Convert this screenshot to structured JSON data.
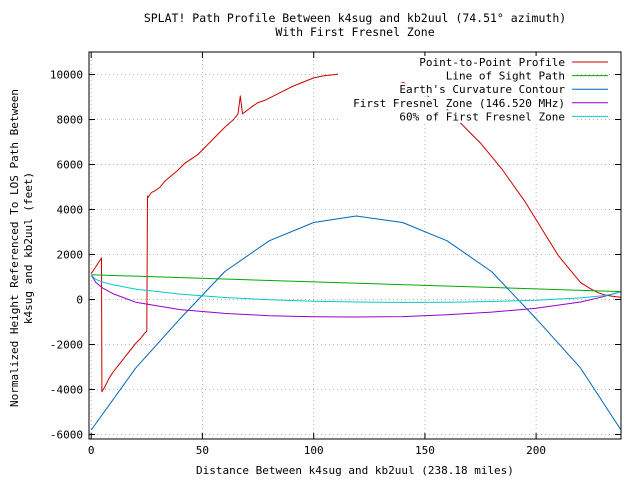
{
  "chart_data": {
    "type": "line",
    "title_line1": "SPLAT! Path Profile Between k4sug and kb2uul (74.51° azimuth)",
    "title_line2": "With First Fresnel Zone",
    "xlabel": "Distance Between k4sug and kb2uul (238.18 miles)",
    "ylabel_line1": "Normalized Height Referenced To LOS Path Between",
    "ylabel_line2": "k4sug and kb2uul (feet)",
    "xlim": [
      -1,
      238.18
    ],
    "ylim": [
      -6200,
      11000
    ],
    "x_ticks": [
      0,
      50,
      100,
      150,
      200
    ],
    "y_ticks": [
      -6000,
      -4000,
      -2000,
      0,
      2000,
      4000,
      6000,
      8000,
      10000
    ],
    "grid": true,
    "grid_style": "dotted",
    "legend_position": "top-right",
    "series": [
      {
        "name": "Point-to-Point Profile",
        "color": "#cc0000",
        "x": [
          0,
          2,
          4,
          4.6,
          4.8,
          6,
          8,
          10,
          12,
          14,
          16,
          18,
          20,
          22,
          24,
          25,
          25.3,
          25.6,
          27,
          29,
          31,
          33,
          36,
          39,
          42,
          45,
          48,
          52,
          56,
          60,
          64,
          66,
          67,
          68,
          70,
          72,
          75,
          78,
          82,
          86,
          90,
          95,
          100,
          105,
          110,
          115,
          120,
          125,
          130,
          135,
          140,
          145,
          150,
          155,
          160,
          165,
          170,
          175,
          180,
          185,
          190,
          195,
          200,
          205,
          210,
          215,
          220,
          225,
          228,
          231,
          234,
          236,
          238
        ],
        "y": [
          1150,
          1450,
          1750,
          1850,
          -4100,
          -3900,
          -3500,
          -3200,
          -2950,
          -2700,
          -2450,
          -2200,
          -1950,
          -1750,
          -1500,
          -1400,
          4600,
          4550,
          4750,
          4850,
          5000,
          5250,
          5500,
          5750,
          6050,
          6250,
          6450,
          6850,
          7250,
          7650,
          8000,
          8250,
          9050,
          8250,
          8400,
          8550,
          8750,
          8850,
          9050,
          9250,
          9450,
          9650,
          9850,
          9950,
          10000,
          10100,
          10150,
          10100,
          10050,
          9850,
          9650,
          9450,
          9150,
          8750,
          8450,
          7950,
          7450,
          6950,
          6350,
          5750,
          5050,
          4350,
          3550,
          2750,
          1950,
          1350,
          750,
          450,
          300,
          200,
          150,
          120,
          100
        ]
      },
      {
        "name": "Line of Sight Path",
        "color": "#00aa00",
        "x": [
          0,
          238.18
        ],
        "y": [
          1100,
          350
        ]
      },
      {
        "name": "Earth's Curvature Contour",
        "color": "#0066bb",
        "x": [
          0,
          20,
          40,
          60,
          80,
          100,
          119.09,
          140,
          160,
          180,
          200,
          220,
          238.18
        ],
        "y": [
          -5800,
          -3050,
          -850,
          1240,
          2610,
          3420,
          3710,
          3420,
          2610,
          1240,
          -850,
          -3050,
          -5800
        ]
      },
      {
        "name": "First Fresnel Zone (146.520 MHz)",
        "color": "#9900cc",
        "x": [
          0,
          2,
          5,
          10,
          20,
          40,
          60,
          80,
          100,
          119.09,
          140,
          160,
          180,
          200,
          220,
          230,
          235,
          238.18
        ],
        "y": [
          1100,
          770,
          520,
          250,
          -120,
          -450,
          -620,
          -720,
          -770,
          -780,
          -760,
          -680,
          -560,
          -390,
          -110,
          120,
          260,
          350
        ]
      },
      {
        "name": "60% of First Fresnel Zone",
        "color": "#00cccc",
        "x": [
          0,
          2,
          5,
          10,
          20,
          40,
          60,
          80,
          100,
          119.09,
          140,
          160,
          180,
          200,
          220,
          230,
          235,
          238.18
        ],
        "y": [
          1100,
          900,
          780,
          650,
          460,
          240,
          90,
          -10,
          -80,
          -110,
          -130,
          -120,
          -90,
          -30,
          70,
          170,
          250,
          350
        ]
      }
    ]
  }
}
